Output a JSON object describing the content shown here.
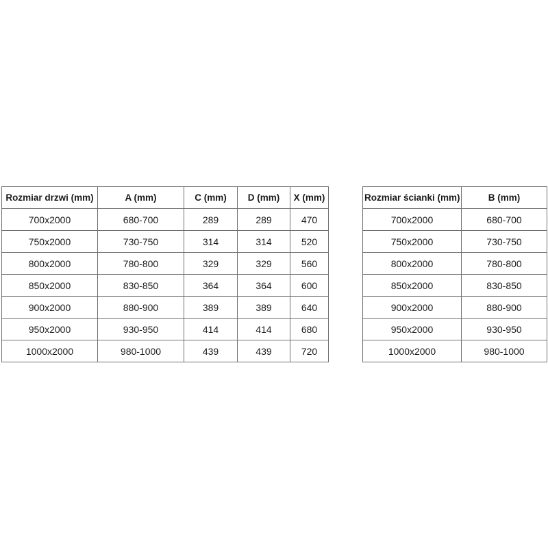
{
  "page": {
    "background_color": "#ffffff",
    "border_color": "#6e6e6e",
    "text_color": "#1a1a1a"
  },
  "tables": {
    "doors": {
      "headers": [
        "Rozmiar drzwi (mm)",
        "A (mm)",
        "C (mm)",
        "D (mm)",
        "X (mm)"
      ],
      "rows": [
        [
          "700x2000",
          "680-700",
          "289",
          "289",
          "470"
        ],
        [
          "750x2000",
          "730-750",
          "314",
          "314",
          "520"
        ],
        [
          "800x2000",
          "780-800",
          "329",
          "329",
          "560"
        ],
        [
          "850x2000",
          "830-850",
          "364",
          "364",
          "600"
        ],
        [
          "900x2000",
          "880-900",
          "389",
          "389",
          "640"
        ],
        [
          "950x2000",
          "930-950",
          "414",
          "414",
          "680"
        ],
        [
          "1000x2000",
          "980-1000",
          "439",
          "439",
          "720"
        ]
      ]
    },
    "walls": {
      "headers": [
        "Rozmiar ścianki (mm)",
        "B (mm)"
      ],
      "rows": [
        [
          "700x2000",
          "680-700"
        ],
        [
          "750x2000",
          "730-750"
        ],
        [
          "800x2000",
          "780-800"
        ],
        [
          "850x2000",
          "830-850"
        ],
        [
          "900x2000",
          "880-900"
        ],
        [
          "950x2000",
          "930-950"
        ],
        [
          "1000x2000",
          "980-1000"
        ]
      ]
    }
  }
}
